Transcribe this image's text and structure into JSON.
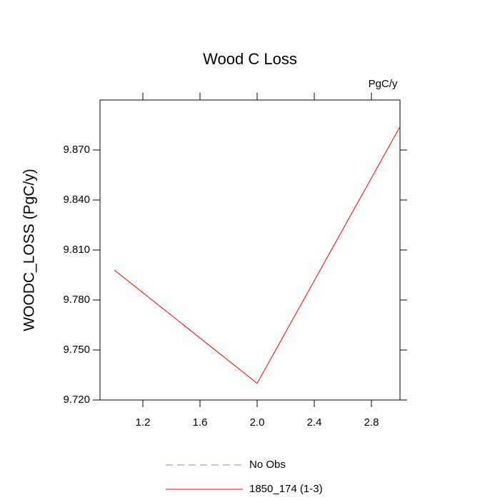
{
  "chart_data": {
    "type": "line",
    "title": "Wood C Loss",
    "units_label": "PgC/y",
    "y_label": "WOODC_LOSS  (PgC/y)",
    "x": [
      1,
      2,
      3
    ],
    "series": [
      {
        "name": "No Obs",
        "color": "#8080ff",
        "dashed": true,
        "values": [
          null,
          null,
          null
        ]
      },
      {
        "name": "1850_174 (1-3)",
        "color": "#ff0000",
        "dashed": false,
        "values": [
          9.798,
          9.73,
          9.884
        ]
      }
    ],
    "xlim": [
      0.9,
      3.0
    ],
    "xticks": [
      1.2,
      1.6,
      {
        "value": 2.0,
        "label": "2.0"
      },
      2.4,
      2.8
    ],
    "ylim": [
      9.72,
      9.9
    ],
    "yticks": [
      {
        "value": 9.72,
        "label": "9.720"
      },
      {
        "value": 9.75,
        "label": "9.750"
      },
      {
        "value": 9.78,
        "label": "9.780"
      },
      {
        "value": 9.81,
        "label": "9.810"
      },
      {
        "value": 9.84,
        "label": "9.840"
      },
      {
        "value": 9.87,
        "label": "9.870"
      }
    ],
    "grid": false
  }
}
